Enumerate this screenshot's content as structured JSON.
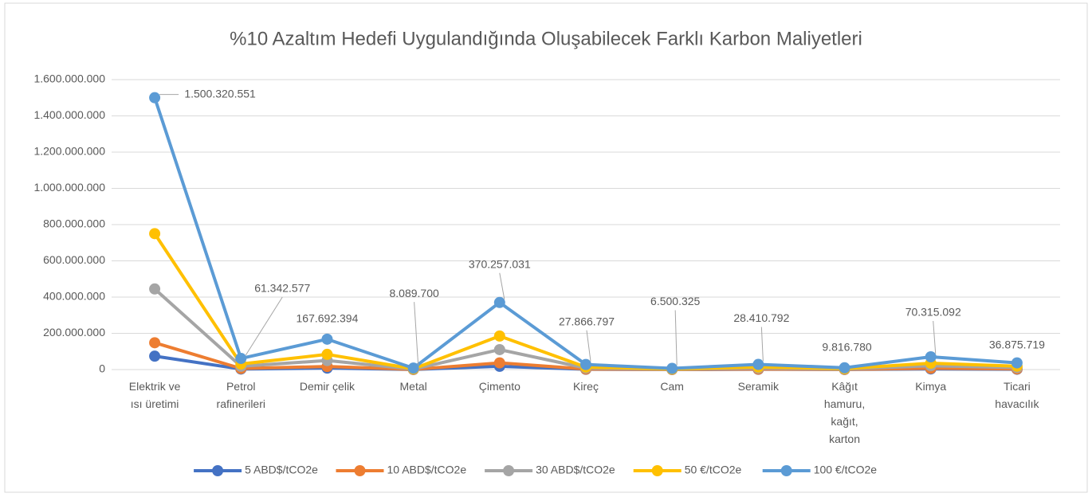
{
  "chart_data": {
    "type": "line",
    "title": "%10 Azaltım Hedefi Uygulandığında Oluşabilecek Farklı Karbon Maliyetleri",
    "categories": [
      "Elektrik ve ısı üretimi",
      "Petrol rafinerileri",
      "Demir çelik",
      "Metal",
      "Çimento",
      "Kireç",
      "Cam",
      "Seramik",
      "Kâğıt hamuru, kağıt, karton",
      "Kimya",
      "Ticari havacılık"
    ],
    "series": [
      {
        "name": "5 ABD$/tCO2e",
        "color": "#4472c4",
        "values": [
          74000000,
          3000000,
          8000000,
          400000,
          18000000,
          1400000,
          300000,
          1400000,
          500000,
          3500000,
          1800000
        ]
      },
      {
        "name": "10 ABD$/tCO2e",
        "color": "#ed7d31",
        "values": [
          148000000,
          6000000,
          17000000,
          800000,
          37000000,
          2800000,
          600000,
          2800000,
          1000000,
          7000000,
          3700000
        ]
      },
      {
        "name": "30 ABD$/tCO2e",
        "color": "#a5a5a5",
        "values": [
          445000000,
          18000000,
          50000000,
          2400000,
          110000000,
          8300000,
          1900000,
          8400000,
          2900000,
          21000000,
          11000000
        ]
      },
      {
        "name": "50 €/tCO2e",
        "color": "#ffc000",
        "values": [
          750160276,
          30671289,
          83846197,
          4044850,
          185128516,
          13933399,
          3250163,
          14205396,
          4908390,
          35157546,
          18437860
        ]
      },
      {
        "name": "100 €/tCO2e",
        "color": "#5b9bd5",
        "values": [
          1500320551,
          61342577,
          167692394,
          8089700,
          370257031,
          27866797,
          6500325,
          28410792,
          9816780,
          70315092,
          36875719
        ],
        "value_labels": [
          "1.500.320.551",
          "61.342.577",
          "167.692.394",
          "8.089.700",
          "370.257.031",
          "27.866.797",
          "6.500.325",
          "28.410.792",
          "9.816.780",
          "70.315.092",
          "36.875.719"
        ]
      }
    ],
    "ylim": [
      0,
      1600000000
    ],
    "yticks": [
      0,
      {
        "value": 200000000,
        "label": "200.000.000"
      },
      {
        "value": 400000000,
        "label": "400.000.000"
      },
      {
        "value": 600000000,
        "label": "600.000.000"
      },
      {
        "value": 800000000,
        "label": "800.000.000"
      },
      {
        "value": 1000000000,
        "label": "1.000.000.000"
      },
      {
        "value": 1200000000,
        "label": "1.200.000.000"
      },
      {
        "value": 1400000000,
        "label": "1.400.000.000"
      },
      {
        "value": 1600000000,
        "label": "1.600.000.000"
      }
    ],
    "grid": true,
    "legend": "bottom"
  }
}
